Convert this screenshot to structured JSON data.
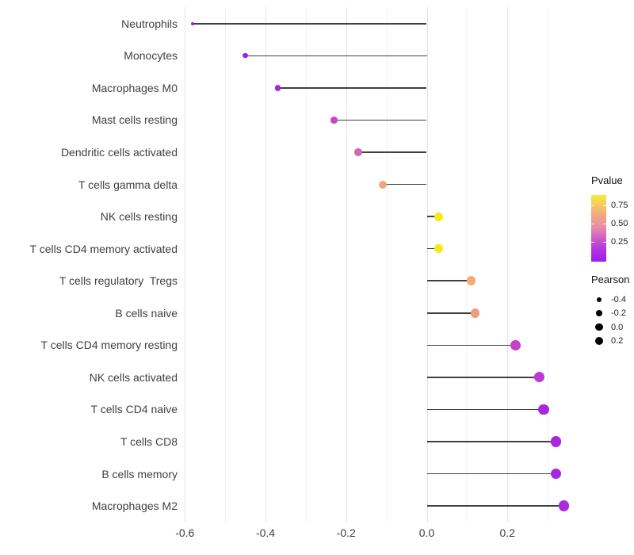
{
  "chart_data": {
    "type": "scatter",
    "subtype": "lollipop",
    "title": "",
    "xlabel": "",
    "ylabel": "",
    "grid": "vertical-only",
    "baseline_x": 0.0,
    "xlim": [
      -0.62,
      0.38
    ],
    "x_major_ticks": [
      -0.6,
      -0.4,
      -0.2,
      0.0,
      0.2
    ],
    "x_major_tick_labels": [
      "-0.6",
      "-0.4",
      "-0.2",
      "0.0",
      "0.2"
    ],
    "x_minor_ticks": [
      -0.5,
      -0.3,
      -0.1,
      0.1,
      0.3
    ],
    "points": [
      {
        "label": "Neutrophils",
        "pearson": -0.58,
        "color": "#9B1CE6"
      },
      {
        "label": "Monocytes",
        "pearson": -0.45,
        "color": "#9623E3"
      },
      {
        "label": "Macrophages M0",
        "pearson": -0.37,
        "color": "#9D28DF"
      },
      {
        "label": "Mast cells resting",
        "pearson": -0.23,
        "color": "#C246C6"
      },
      {
        "label": "Dendritic cells activated",
        "pearson": -0.17,
        "color": "#D168B0"
      },
      {
        "label": "T cells gamma delta",
        "pearson": -0.11,
        "color": "#EFA87E"
      },
      {
        "label": "NK cells resting",
        "pearson": 0.03,
        "color": "#F2EC13"
      },
      {
        "label": "T cells CD4 memory activated",
        "pearson": 0.03,
        "color": "#F2EC13"
      },
      {
        "label": "T cells regulatory  Tregs",
        "pearson": 0.11,
        "color": "#F1AD74"
      },
      {
        "label": "B cells naive",
        "pearson": 0.12,
        "color": "#EC9E80"
      },
      {
        "label": "T cells CD4 memory resting",
        "pearson": 0.22,
        "color": "#C443C5"
      },
      {
        "label": "NK cells activated",
        "pearson": 0.28,
        "color": "#BB39D4"
      },
      {
        "label": "T cells CD4 naive",
        "pearson": 0.29,
        "color": "#AA28DA"
      },
      {
        "label": "T cells CD8",
        "pearson": 0.32,
        "color": "#A826DC"
      },
      {
        "label": "B cells memory",
        "pearson": 0.32,
        "color": "#A727DC"
      },
      {
        "label": "Macrophages M2",
        "pearson": 0.34,
        "color": "#AB2BDC"
      }
    ],
    "legends": {
      "pvalue": {
        "title": "Pvalue",
        "tick_labels": [
          "0.75",
          "0.50",
          "0.25"
        ],
        "gradient_top_to_bottom": [
          "#F9EB37",
          "#F4C468",
          "#F0A384",
          "#E589AB",
          "#CB58C8",
          "#B032E2",
          "#9C1BF0"
        ]
      },
      "pearson": {
        "title": "Pearson",
        "entries": [
          {
            "label": "-0.4",
            "pearson": -0.4
          },
          {
            "label": "-0.2",
            "pearson": -0.2
          },
          {
            "label": "0.0",
            "pearson": 0.0
          },
          {
            "label": "0.2",
            "pearson": 0.2
          }
        ],
        "dot_color": "#000000"
      }
    },
    "stem_color": "#404040"
  }
}
